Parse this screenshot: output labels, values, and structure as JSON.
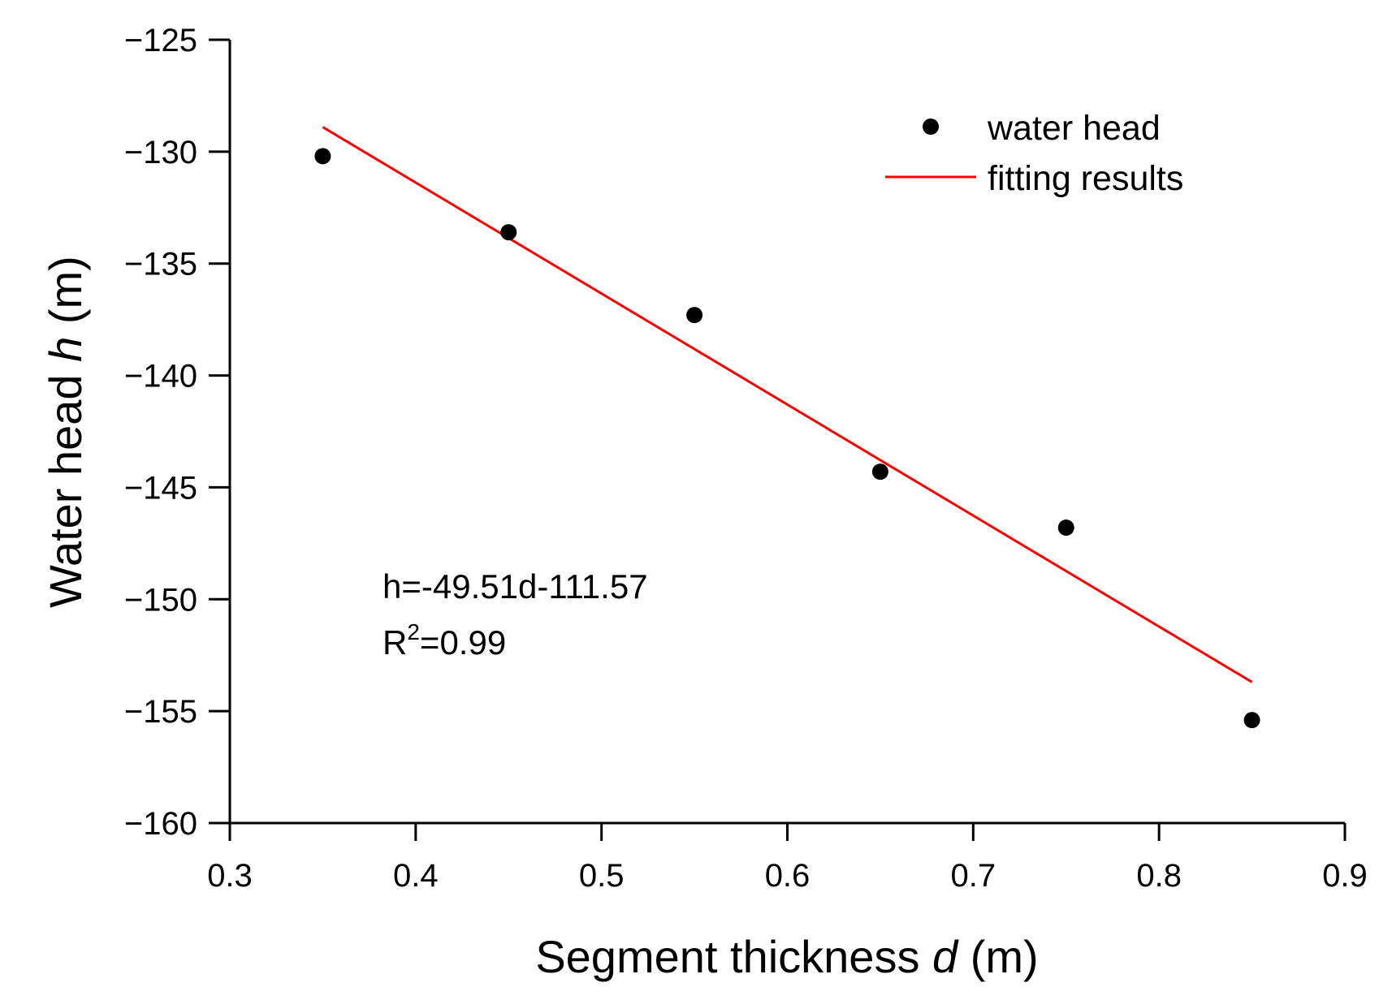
{
  "chart_data": {
    "type": "scatter",
    "title": "",
    "xlabel": "Segment thickness",
    "xlabel_var": "d",
    "xlabel_unit": "(m)",
    "ylabel": "Water head",
    "ylabel_var": "h",
    "ylabel_unit": "(m)",
    "xlim": [
      0.3,
      0.9
    ],
    "ylim": [
      -160,
      -125
    ],
    "x_ticks": [
      0.3,
      0.4,
      0.5,
      0.6,
      0.7,
      0.8,
      0.9
    ],
    "x_tick_labels": [
      "0.3",
      "0.4",
      "0.5",
      "0.6",
      "0.7",
      "0.8",
      "0.9"
    ],
    "y_ticks": [
      -125,
      -130,
      -135,
      -140,
      -145,
      -150,
      -155,
      -160
    ],
    "y_tick_labels": [
      "−125",
      "−130",
      "−135",
      "−140",
      "−145",
      "−150",
      "−155",
      "−160"
    ],
    "grid": false,
    "legend_position": "top-right",
    "series": [
      {
        "name": "water head",
        "kind": "scatter",
        "color": "#000000",
        "x": [
          0.35,
          0.45,
          0.55,
          0.65,
          0.75,
          0.85
        ],
        "y": [
          -130.2,
          -133.6,
          -137.3,
          -144.3,
          -146.8,
          -155.4
        ]
      },
      {
        "name": "fitting results",
        "kind": "line",
        "color": "#ff0000",
        "x": [
          0.35,
          0.85
        ],
        "y": [
          -128.9,
          -153.7
        ]
      }
    ],
    "annotations": {
      "equation": "h=-49.51d-111.57",
      "r2_prefix": "R",
      "r2_sup": "2",
      "r2_value": "=0.99"
    }
  }
}
